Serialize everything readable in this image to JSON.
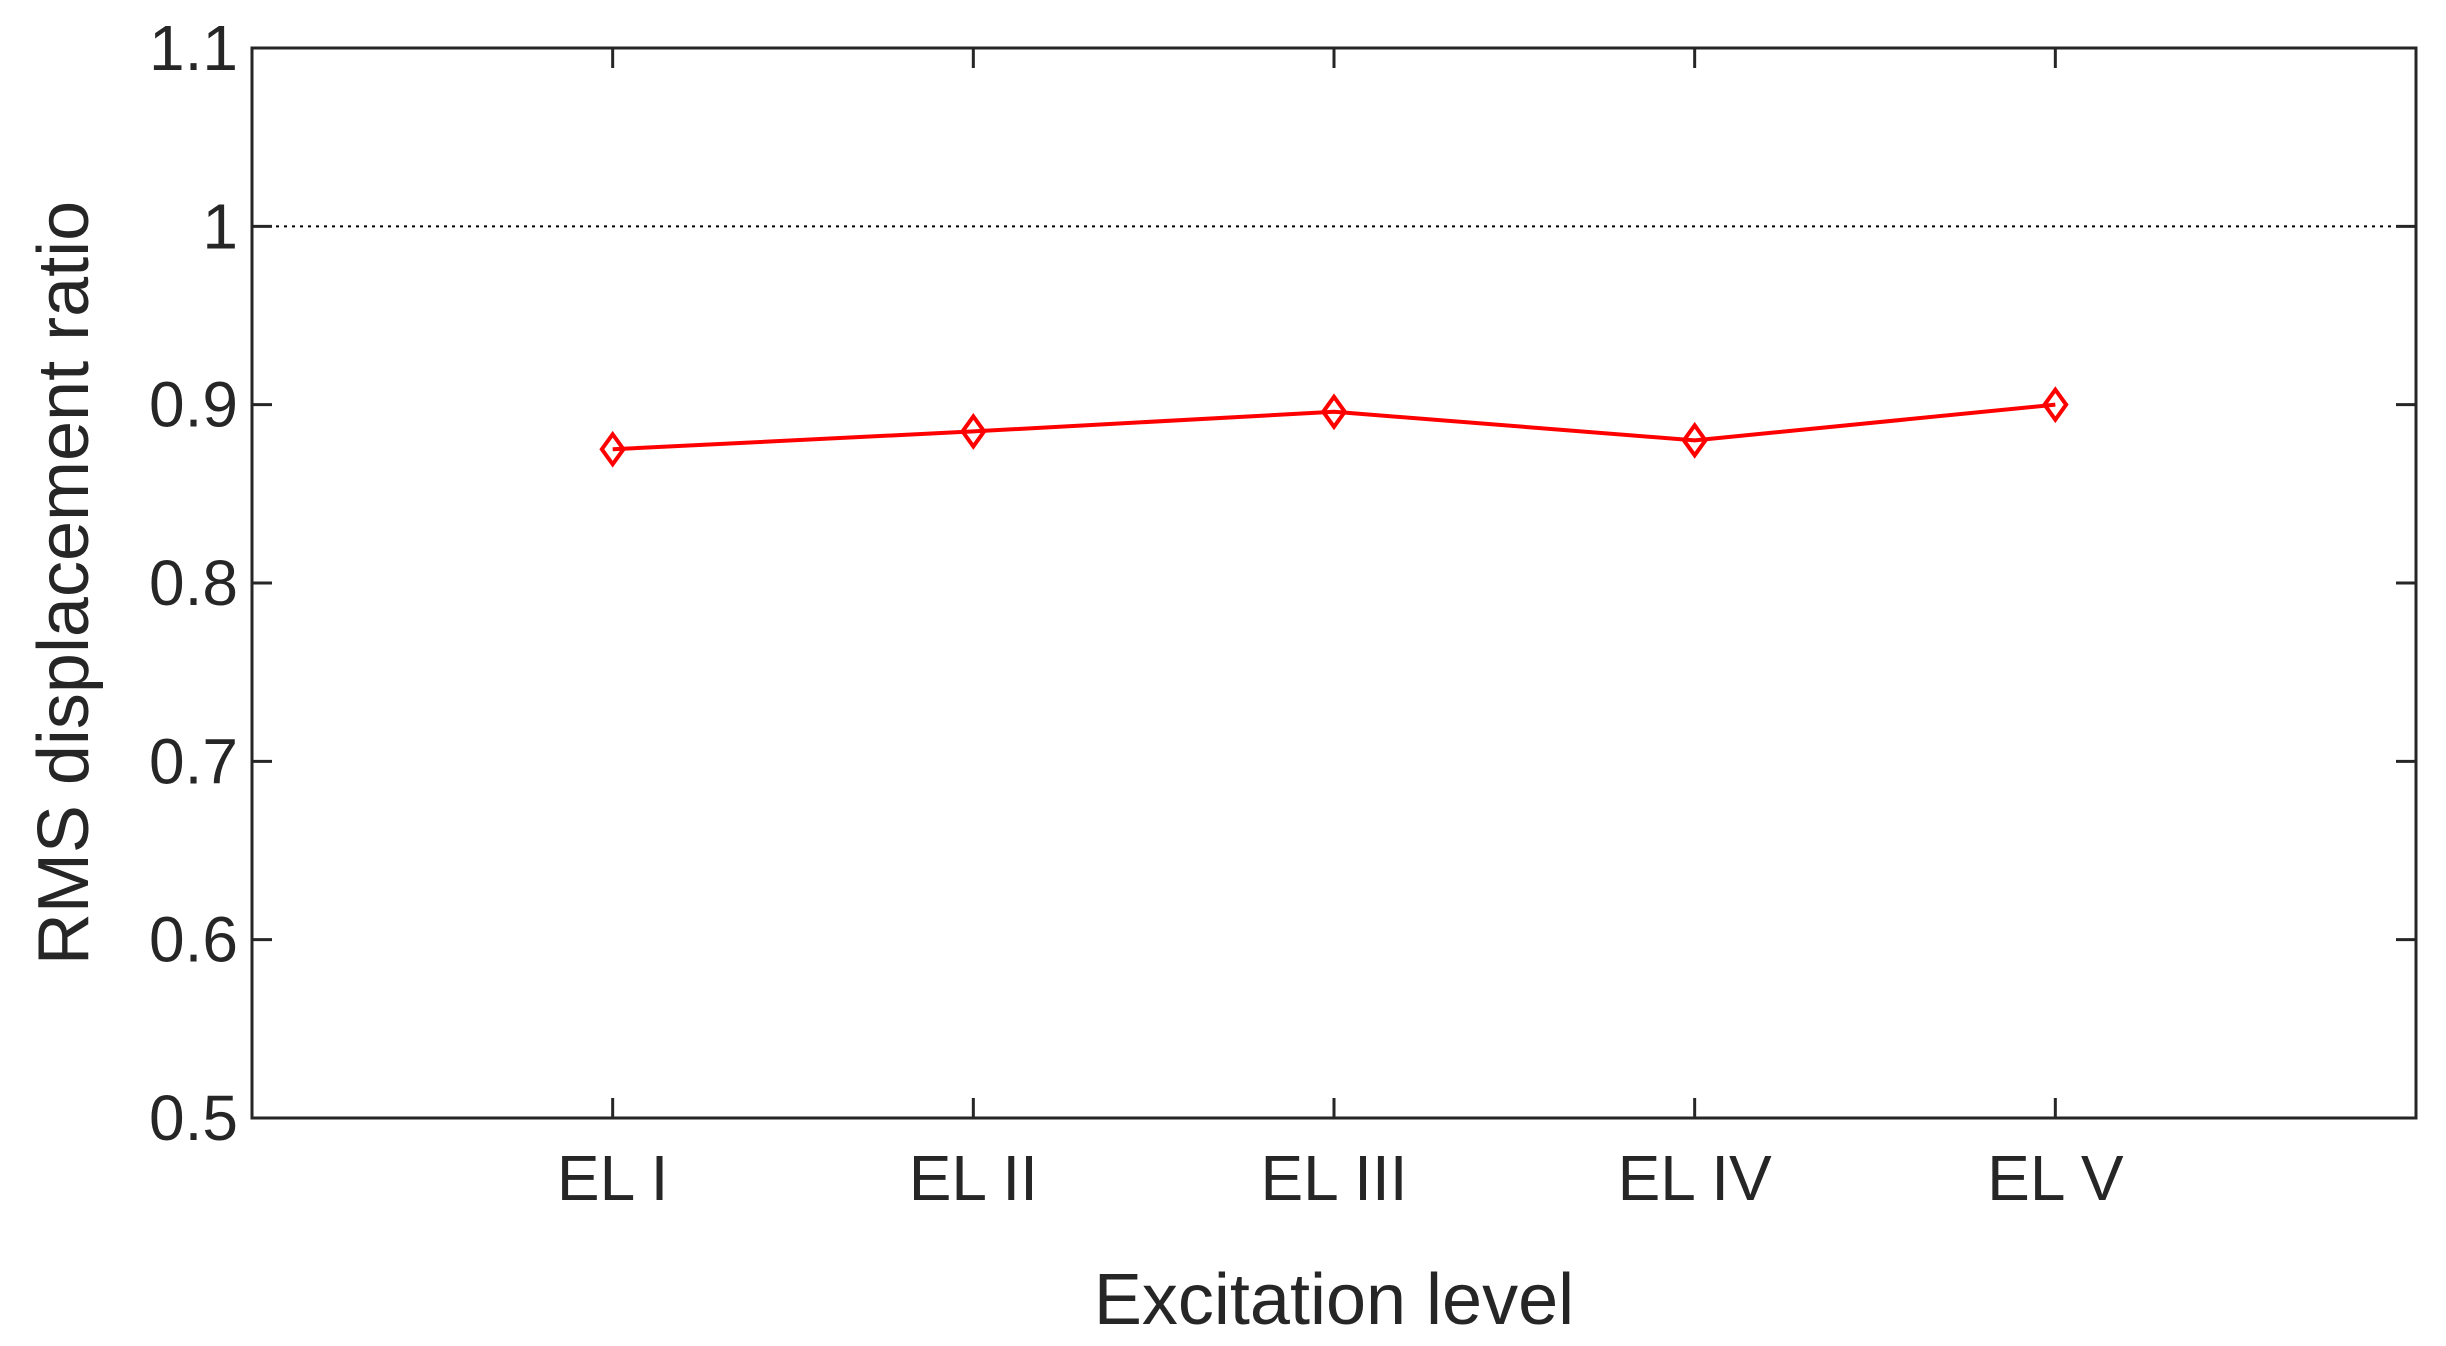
{
  "chart_data": {
    "type": "line",
    "xlabel": "Excitation level",
    "ylabel": "RMS displacement ratio",
    "categories": [
      "EL I",
      "EL II",
      "EL III",
      "EL IV",
      "EL V"
    ],
    "x_range": [
      0,
      6
    ],
    "ylim": [
      0.5,
      1.1
    ],
    "yticks": [
      0.5,
      0.6,
      0.7,
      0.8,
      0.9,
      1,
      1.1
    ],
    "ytick_labels": [
      "0.5",
      "0.6",
      "0.7",
      "0.8",
      "0.9",
      "1",
      "1.1"
    ],
    "grid": false,
    "reference_line": {
      "y": 1,
      "style": "dotted",
      "color": "#000000"
    },
    "series": [
      {
        "values": [
          0.875,
          0.885,
          0.896,
          0.88,
          0.9
        ],
        "color": "#ff0000",
        "marker": "diamond"
      }
    ]
  }
}
